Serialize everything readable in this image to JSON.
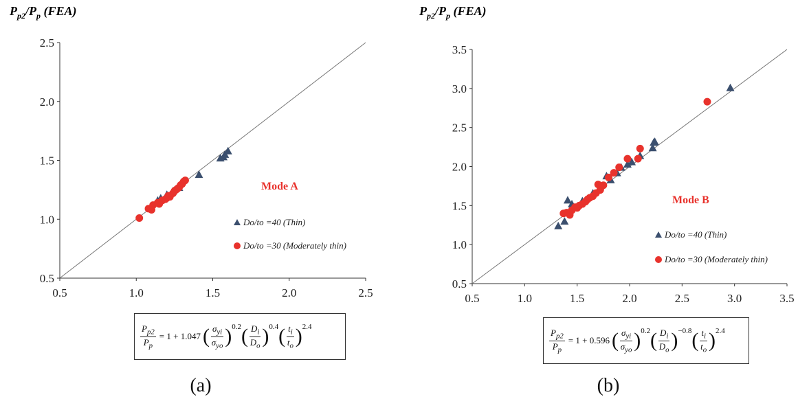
{
  "caption_a": "(a)",
  "caption_b": "(b)",
  "chart_data": [
    {
      "type": "scatter",
      "ylabel_main": "P",
      "ylabel_sub": "p2",
      "ylabel_mid": "/P",
      "ylabel_sub2": "p",
      "ylabel_tail": " (FEA)",
      "xlim": [
        0.5,
        2.5
      ],
      "ylim": [
        0.5,
        2.5
      ],
      "xticks": [
        "0.5",
        "1.0",
        "1.5",
        "2.0",
        "2.5"
      ],
      "yticks": [
        "0.5",
        "1.0",
        "1.5",
        "2.0",
        "2.5"
      ],
      "reference_line": "y = x",
      "annotation": "Mode A",
      "legend_position": "right",
      "series": [
        {
          "name": "Do/to =40 (Thin)",
          "marker": "triangle",
          "color": "#3b4f6e",
          "x": [
            1.14,
            1.16,
            1.2,
            1.24,
            1.28,
            1.41,
            1.55,
            1.57,
            1.58,
            1.6
          ],
          "y": [
            1.16,
            1.18,
            1.21,
            1.24,
            1.27,
            1.38,
            1.52,
            1.53,
            1.55,
            1.58
          ]
        },
        {
          "name": "Do/to =30 (Moderately thin)",
          "marker": "circle",
          "color": "#e8322c",
          "x": [
            1.02,
            1.08,
            1.1,
            1.11,
            1.14,
            1.15,
            1.17,
            1.19,
            1.2,
            1.21,
            1.22,
            1.24,
            1.25,
            1.26,
            1.27,
            1.28,
            1.29,
            1.3,
            1.31,
            1.32
          ],
          "y": [
            1.01,
            1.09,
            1.08,
            1.12,
            1.14,
            1.13,
            1.16,
            1.17,
            1.18,
            1.2,
            1.19,
            1.22,
            1.24,
            1.25,
            1.26,
            1.27,
            1.29,
            1.3,
            1.32,
            1.33
          ]
        }
      ],
      "formula": {
        "lhs_num": "P",
        "lhs_num_sub": "p2",
        "lhs_den": "P",
        "lhs_den_sub": "p",
        "rhs": "= 1 + 1.047",
        "t1_num": "σ",
        "t1_num_sub": "yi",
        "t1_den": "σ",
        "t1_den_sub": "yo",
        "t1_exp": "0.2",
        "t2_num": "D",
        "t2_num_sub": "i",
        "t2_den": "D",
        "t2_den_sub": "o",
        "t2_exp": "0.4",
        "t3_num": "t",
        "t3_num_sub": "i",
        "t3_den": "t",
        "t3_den_sub": "o",
        "t3_exp": "2.4"
      }
    },
    {
      "type": "scatter",
      "ylabel_main": "P",
      "ylabel_sub": "p2",
      "ylabel_mid": "/P",
      "ylabel_sub2": "p",
      "ylabel_tail": " (FEA)",
      "xlim": [
        0.5,
        3.5
      ],
      "ylim": [
        0.5,
        3.5
      ],
      "xticks": [
        "0.5",
        "1.0",
        "1.5",
        "2.0",
        "2.5",
        "3.0",
        "3.5"
      ],
      "yticks": [
        "0.5",
        "1.0",
        "1.5",
        "2.0",
        "2.5",
        "3.0",
        "3.5"
      ],
      "reference_line": "y = x",
      "annotation": "Mode B",
      "legend_position": "right",
      "series": [
        {
          "name": "Do/to =40 (Thin)",
          "marker": "triangle",
          "color": "#3b4f6e",
          "x": [
            1.32,
            1.38,
            1.41,
            1.45,
            1.55,
            1.65,
            1.72,
            1.78,
            1.82,
            1.88,
            1.92,
            1.98,
            2.02,
            2.1,
            2.22,
            2.23,
            2.24,
            2.96
          ],
          "y": [
            1.24,
            1.3,
            1.57,
            1.52,
            1.56,
            1.66,
            1.74,
            1.88,
            1.83,
            1.92,
            1.99,
            2.03,
            2.06,
            2.14,
            2.24,
            2.31,
            2.32,
            3.01
          ]
        },
        {
          "name": "Do/to =30 (Moderately thin)",
          "marker": "circle",
          "color": "#e8322c",
          "x": [
            1.37,
            1.4,
            1.43,
            1.45,
            1.48,
            1.5,
            1.52,
            1.55,
            1.58,
            1.6,
            1.62,
            1.65,
            1.68,
            1.7,
            1.72,
            1.75,
            1.8,
            1.85,
            1.9,
            1.98,
            2.08,
            2.1,
            2.74
          ],
          "y": [
            1.4,
            1.41,
            1.38,
            1.44,
            1.48,
            1.47,
            1.5,
            1.52,
            1.55,
            1.58,
            1.6,
            1.62,
            1.66,
            1.77,
            1.7,
            1.76,
            1.86,
            1.92,
            1.99,
            2.1,
            2.1,
            2.23,
            2.83
          ]
        }
      ],
      "formula": {
        "lhs_num": "P",
        "lhs_num_sub": "p2",
        "lhs_den": "P",
        "lhs_den_sub": "p",
        "rhs": "= 1 + 0.596",
        "t1_num": "σ",
        "t1_num_sub": "yi",
        "t1_den": "σ",
        "t1_den_sub": "yo",
        "t1_exp": "0.2",
        "t2_num": "D",
        "t2_num_sub": "i",
        "t2_den": "D",
        "t2_den_sub": "o",
        "t2_exp": "−0.8",
        "t3_num": "t",
        "t3_num_sub": "i",
        "t3_den": "t",
        "t3_den_sub": "o",
        "t3_exp": "2.4"
      }
    }
  ]
}
